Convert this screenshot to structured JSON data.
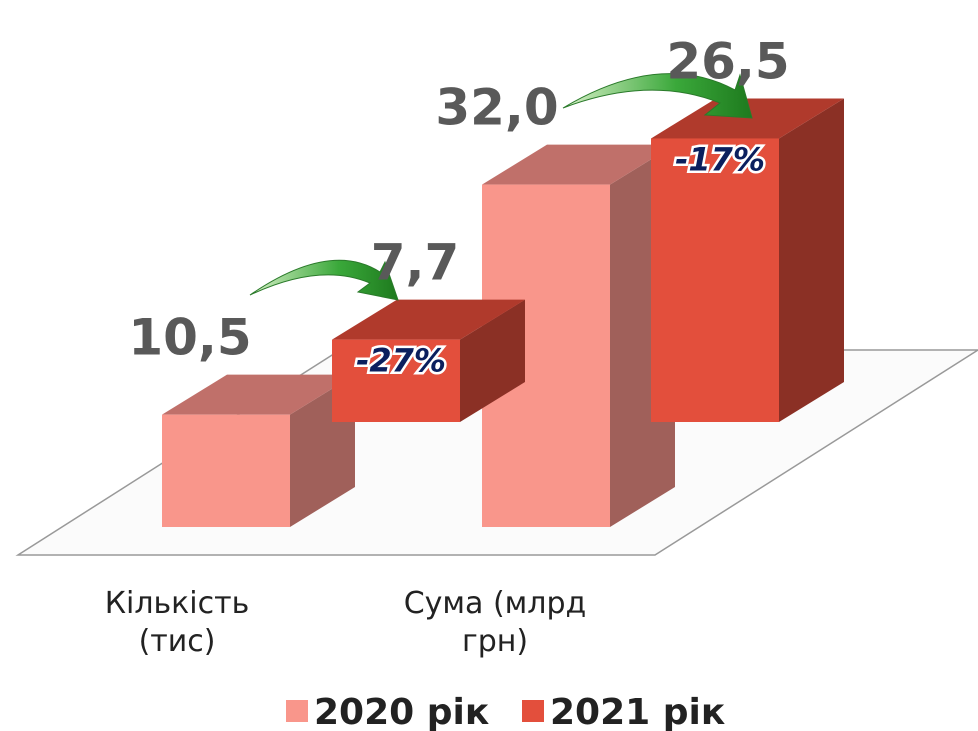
{
  "chart_data": {
    "type": "bar3d",
    "categories": [
      "Кількість (тис)",
      "Сума (млрд грн)"
    ],
    "series": [
      {
        "name": "2020 рік",
        "color": "#f9968b",
        "values": [
          10.5,
          32.0
        ],
        "value_labels": [
          "10,5",
          "32,0"
        ]
      },
      {
        "name": "2021 рік",
        "color": "#e34f3c",
        "values": [
          7.7,
          26.5
        ],
        "value_labels": [
          "7,7",
          "26,5"
        ]
      }
    ],
    "annotations": [
      "-27%",
      "-17%"
    ]
  }
}
